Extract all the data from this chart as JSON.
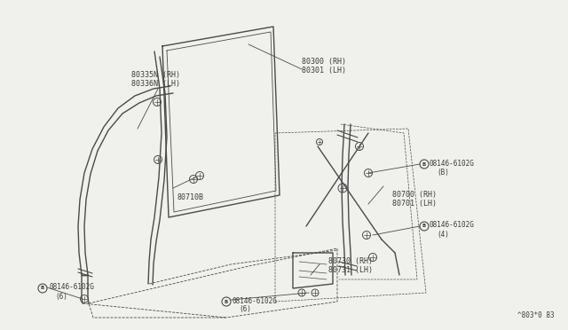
{
  "bg_color": "#f0f0ec",
  "line_color": "#4a4a4a",
  "text_color": "#3a3a3a",
  "diagram_ref": "^803*0 83",
  "parts": {
    "left_frame_label": "80335N (RH)\n80336N (LH)",
    "glass_label": "80300 (RH)\n80301 (LH)",
    "sash_label": "80710B",
    "reg_label": "80700 (RH)\n80701 (LH)",
    "motor_label": "80730 (RH)\n80731 (LH)",
    "bolt_bl": "08146-6102G\n   (6)",
    "bolt_bc": "08146-6102G\n   (6)",
    "bolt_rb": "08146-6102G\n   (B)",
    "bolt_r4": "08146-6102G\n   (4)"
  }
}
